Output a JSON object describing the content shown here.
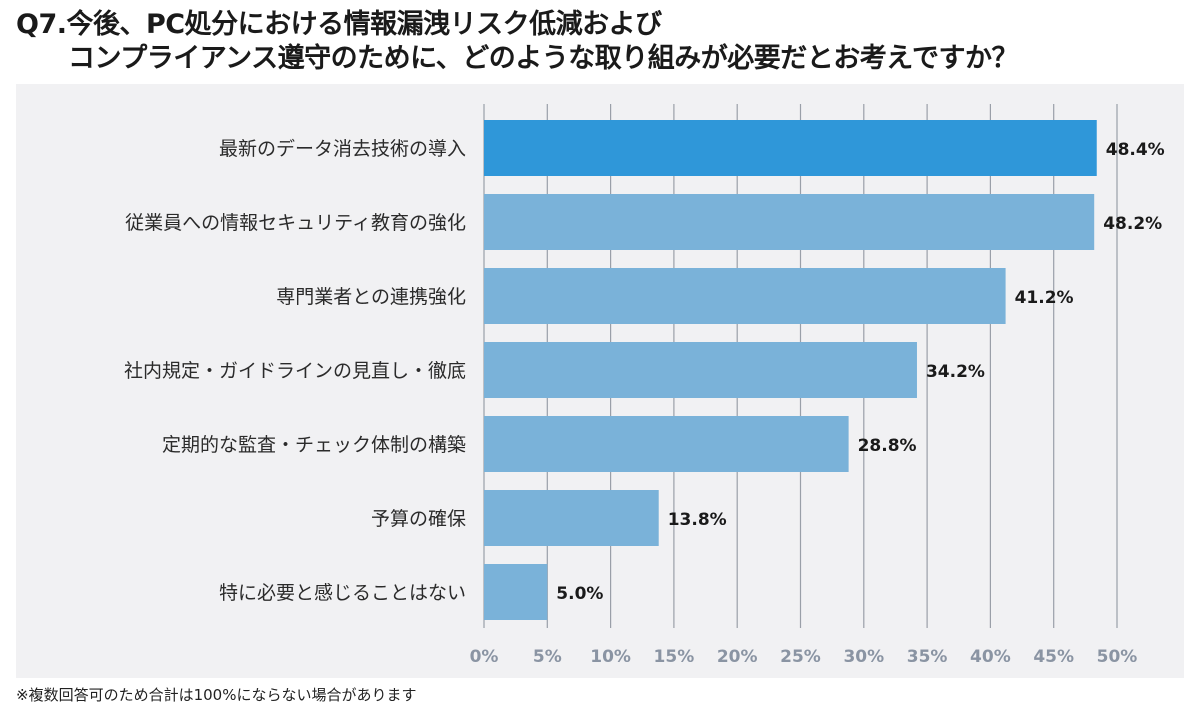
{
  "title": {
    "line1": "Q7.今後、PC処分における情報漏洩リスク低減および",
    "line2": "コンプライアンス遵守のために、どのような取り組みが必要だとお考えですか？"
  },
  "footnote": "※複数回答可のため合計は100%にならない場合があります",
  "chart_data": {
    "type": "bar",
    "orientation": "horizontal",
    "title": "Q7.今後、PC処分における情報漏洩リスク低減およびコンプライアンス遵守のために、どのような取り組みが必要だとお考えですか？",
    "categories": [
      "最新のデータ消去技術の導入",
      "従業員への情報セキュリティ教育の強化",
      "専門業者との連携強化",
      "社内規定・ガイドラインの見直し・徹底",
      "定期的な監査・チェック体制の構築",
      "予算の確保",
      "特に必要と感じることはない"
    ],
    "values": [
      48.4,
      48.2,
      41.2,
      34.2,
      28.8,
      13.8,
      5.0
    ],
    "value_labels": [
      "48.4%",
      "48.2%",
      "41.2%",
      "34.2%",
      "28.8%",
      "13.8%",
      "5.0%"
    ],
    "xlim": [
      0,
      50
    ],
    "xticks": [
      "0%",
      "5%",
      "10%",
      "15%",
      "20%",
      "25%",
      "30%",
      "35%",
      "40%",
      "45%",
      "50%"
    ],
    "grid": true,
    "colors": {
      "highlight": "#2f97d9",
      "bar": "#7ab2d9",
      "grid": "#9a9fa8"
    }
  }
}
